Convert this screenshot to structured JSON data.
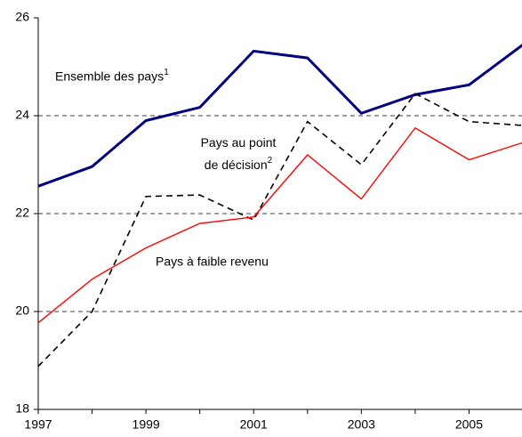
{
  "chart_data": {
    "type": "line",
    "x": [
      1997,
      1998,
      1999,
      2000,
      2001,
      2002,
      2003,
      2004,
      2005,
      2006
    ],
    "series": [
      {
        "name": "Ensemble des pays",
        "footnote": "1",
        "color": "#000080",
        "width": 3,
        "dash": "none",
        "values": [
          22.56,
          22.96,
          23.9,
          24.17,
          25.32,
          25.18,
          24.05,
          24.43,
          24.63,
          25.45
        ]
      },
      {
        "name": "Pays au point de décision",
        "footnote": "2",
        "color": "#000000",
        "width": 1.6,
        "dash": "7,5",
        "values": [
          18.88,
          20.0,
          22.35,
          22.38,
          21.87,
          23.88,
          23.0,
          24.45,
          23.88,
          23.8
        ]
      },
      {
        "name": "Pays à faible revenu",
        "color": "#ff0000",
        "width": 1.4,
        "dash": "none",
        "values": [
          19.77,
          20.66,
          21.3,
          21.8,
          21.93,
          23.2,
          22.3,
          23.75,
          23.1,
          23.45
        ]
      }
    ],
    "xlim": [
      1997,
      2006
    ],
    "xticks": [
      1997,
      1999,
      2001,
      2003,
      2005
    ],
    "ylim": [
      18,
      26
    ],
    "yticks": [
      18,
      20,
      22,
      24,
      26
    ],
    "grid": true
  }
}
